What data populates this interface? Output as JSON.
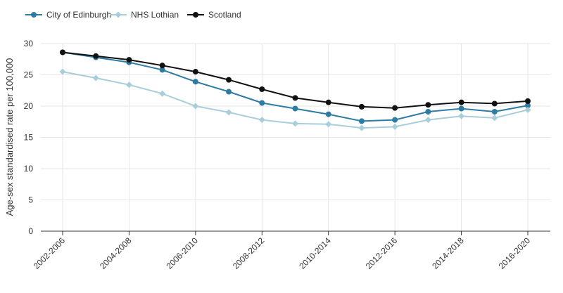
{
  "chart_data": {
    "type": "line",
    "title": "",
    "xlabel": "",
    "ylabel": "Age-sex standardised rate per 100,000",
    "ylim": [
      0,
      30
    ],
    "yticks": [
      0,
      5,
      10,
      15,
      20,
      25,
      30
    ],
    "x": [
      "2002-2006",
      "2003-2007",
      "2004-2008",
      "2005-2009",
      "2006-2010",
      "2007-2011",
      "2008-2012",
      "2009-2013",
      "2010-2014",
      "2011-2015",
      "2012-2016",
      "2013-2017",
      "2014-2018",
      "2015-2019",
      "2016-2020"
    ],
    "xtick_labels": [
      "2002-2006",
      "2004-2008",
      "2006-2010",
      "2008-2012",
      "2010-2014",
      "2012-2016",
      "2014-2018",
      "2016-2020"
    ],
    "legend_position": "top-left",
    "grid": true,
    "series": [
      {
        "name": "City of Edinburgh",
        "color": "#2e7ba3",
        "marker": "circle",
        "values": [
          28.6,
          27.8,
          27.0,
          25.8,
          23.9,
          22.3,
          20.5,
          19.6,
          18.7,
          17.6,
          17.8,
          19.1,
          19.6,
          19.1,
          20.1
        ]
      },
      {
        "name": "NHS Lothian",
        "color": "#a9cedb",
        "marker": "diamond",
        "values": [
          25.5,
          24.5,
          23.4,
          22.0,
          20.0,
          19.0,
          17.8,
          17.2,
          17.1,
          16.5,
          16.7,
          17.8,
          18.4,
          18.1,
          19.4
        ]
      },
      {
        "name": "Scotland",
        "color": "#111111",
        "marker": "circle",
        "values": [
          28.6,
          28.0,
          27.4,
          26.5,
          25.5,
          24.2,
          22.7,
          21.3,
          20.6,
          19.9,
          19.7,
          20.2,
          20.6,
          20.4,
          20.8
        ]
      }
    ]
  }
}
